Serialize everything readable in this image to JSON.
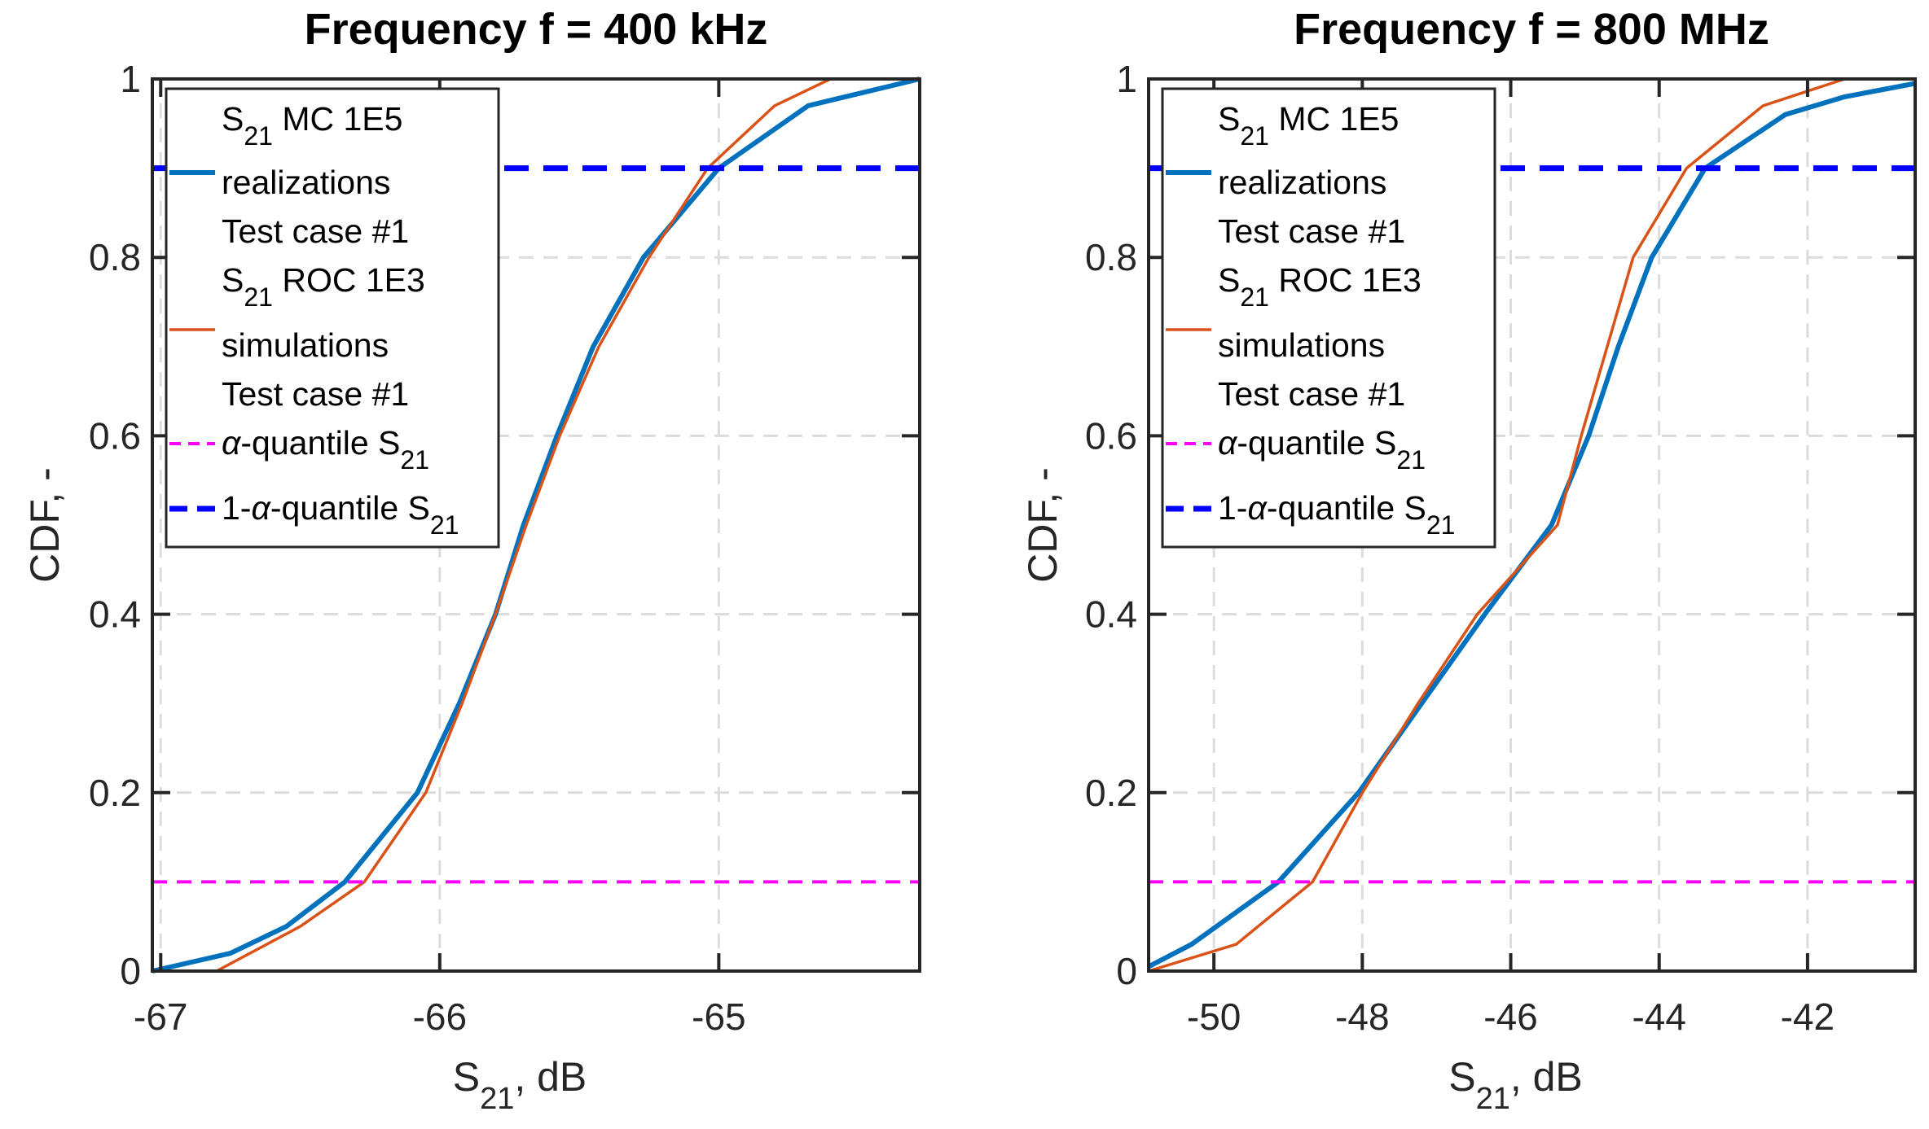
{
  "chart_data": [
    {
      "type": "line",
      "title": "Frequency f = 400 kHz",
      "xlabel": {
        "main": "S",
        "sub": "21",
        "rest": ", dB"
      },
      "ylabel": "CDF, -",
      "xlim": [
        -67.03,
        -64.28
      ],
      "ylim": [
        0,
        1
      ],
      "xticks": [
        -67,
        -66,
        -65
      ],
      "xtick_labels": [
        "-67",
        "-66",
        "-65"
      ],
      "yticks": [
        0,
        0.2,
        0.4,
        0.6,
        0.8,
        1
      ],
      "ytick_labels": [
        "0",
        "0.2",
        "0.4",
        "0.6",
        "0.8",
        "1"
      ],
      "grid": true,
      "legend_position": "top-left",
      "series": [
        {
          "name": "S21 MC 1E5 realizations Test case #1",
          "color": "#0072BD",
          "style": "solid",
          "x": [
            -67.03,
            -66.75,
            -66.55,
            -66.34,
            -66.08,
            -65.93,
            -65.8,
            -65.7,
            -65.58,
            -65.45,
            -65.27,
            -65.0,
            -64.68,
            -64.28
          ],
          "y": [
            0.0,
            0.02,
            0.05,
            0.1,
            0.2,
            0.3,
            0.4,
            0.5,
            0.6,
            0.7,
            0.8,
            0.9,
            0.97,
            1.0
          ]
        },
        {
          "name": "S21 ROC 1E3 simulations Test case #1",
          "color": "#D95319",
          "style": "solid",
          "x": [
            -67.03,
            -66.8,
            -66.5,
            -66.27,
            -66.05,
            -65.92,
            -65.8,
            -65.69,
            -65.57,
            -65.43,
            -65.25,
            -65.04,
            -64.8,
            -64.6,
            -64.28
          ],
          "y": [
            0.0,
            0.0,
            0.05,
            0.1,
            0.2,
            0.3,
            0.4,
            0.5,
            0.6,
            0.7,
            0.8,
            0.9,
            0.97,
            1.0,
            1.0
          ]
        },
        {
          "name": "α-quantile S21",
          "color": "#FF00FF",
          "style": "dashed",
          "x": [
            -67.03,
            -64.28
          ],
          "y": [
            0.1,
            0.1
          ]
        },
        {
          "name": "1-α-quantile S21",
          "color": "#0000FF",
          "style": "dashed",
          "x": [
            -67.03,
            -64.28
          ],
          "y": [
            0.9,
            0.9
          ]
        }
      ]
    },
    {
      "type": "line",
      "title": "Frequency f = 800 MHz",
      "xlabel": {
        "main": "S",
        "sub": "21",
        "rest": ", dB"
      },
      "ylabel": "CDF, -",
      "xlim": [
        -50.88,
        -40.55
      ],
      "ylim": [
        0,
        1
      ],
      "xticks": [
        -50,
        -48,
        -46,
        -44,
        -42
      ],
      "xtick_labels": [
        "-50",
        "-48",
        "-46",
        "-44",
        "-42"
      ],
      "yticks": [
        0,
        0.2,
        0.4,
        0.6,
        0.8,
        1
      ],
      "ytick_labels": [
        "0",
        "0.2",
        "0.4",
        "0.6",
        "0.8",
        "1"
      ],
      "grid": true,
      "legend_position": "top-left",
      "series": [
        {
          "name": "S21 MC 1E5 realizations Test case #1",
          "color": "#0072BD",
          "style": "solid",
          "x": [
            -50.88,
            -50.3,
            -49.13,
            -48.05,
            -47.2,
            -46.35,
            -45.45,
            -44.95,
            -44.55,
            -44.1,
            -43.38,
            -42.3,
            -41.5,
            -40.55
          ],
          "y": [
            0.005,
            0.03,
            0.1,
            0.2,
            0.3,
            0.4,
            0.5,
            0.6,
            0.7,
            0.8,
            0.9,
            0.96,
            0.98,
            0.995
          ]
        },
        {
          "name": "S21 ROC 1E3 simulations Test case #1",
          "color": "#D95319",
          "style": "solid",
          "x": [
            -50.88,
            -49.7,
            -48.67,
            -48.0,
            -47.25,
            -46.45,
            -45.37,
            -45.05,
            -44.7,
            -44.35,
            -43.63,
            -42.6,
            -41.5,
            -40.55
          ],
          "y": [
            0.0,
            0.03,
            0.1,
            0.2,
            0.3,
            0.4,
            0.5,
            0.6,
            0.7,
            0.8,
            0.9,
            0.97,
            1.0,
            1.0
          ]
        },
        {
          "name": "α-quantile S21",
          "color": "#FF00FF",
          "style": "dashed",
          "x": [
            -50.88,
            -40.55
          ],
          "y": [
            0.1,
            0.1
          ]
        },
        {
          "name": "1-α-quantile S21",
          "color": "#0000FF",
          "style": "dashed",
          "x": [
            -50.88,
            -40.55
          ],
          "y": [
            0.9,
            0.9
          ]
        }
      ]
    }
  ],
  "legend": {
    "s": "S",
    "sub21": "21",
    "mc_rest": " MC 1E5",
    "mc_line2": "realizations",
    "test_case": "Test case #1",
    "roc_rest": " ROC 1E3",
    "roc_line2": "simulations",
    "alpha": "α",
    "alpha_rest": "-quantile S",
    "one_minus": "1-"
  }
}
